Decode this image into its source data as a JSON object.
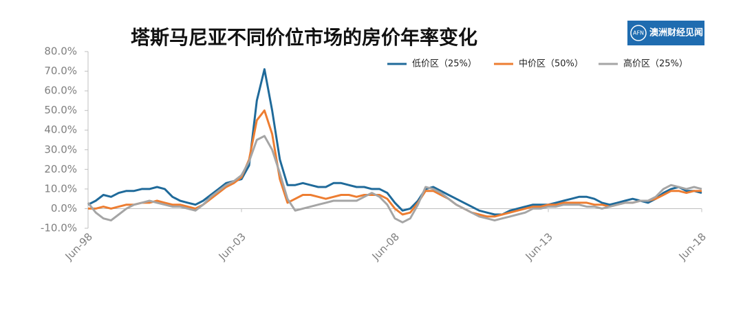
{
  "chart_data": {
    "type": "line",
    "title": "塔斯马尼亚不同价位市场的房价年率变化",
    "logo": {
      "mark": "AFN",
      "text": "澳洲财经见闻"
    },
    "categories": [
      "Jun-98",
      null,
      null,
      null,
      null,
      null,
      null,
      null,
      null,
      null,
      null,
      null,
      null,
      null,
      null,
      null,
      null,
      null,
      null,
      null,
      "Jun-03",
      null,
      null,
      null,
      null,
      null,
      null,
      null,
      null,
      null,
      null,
      null,
      null,
      null,
      null,
      null,
      null,
      null,
      null,
      null,
      "Jun-08",
      null,
      null,
      null,
      null,
      null,
      null,
      null,
      null,
      null,
      null,
      null,
      null,
      null,
      null,
      null,
      null,
      null,
      null,
      null,
      "Jun-13",
      null,
      null,
      null,
      null,
      null,
      null,
      null,
      null,
      null,
      null,
      null,
      null,
      null,
      null,
      null,
      null,
      null,
      null,
      null,
      "Jun-18"
    ],
    "series": [
      {
        "name": "低价区（25%）",
        "color": "#1f6a9a",
        "values": [
          2,
          4,
          7,
          6,
          8,
          9,
          9,
          10,
          10,
          11,
          10,
          6,
          4,
          3,
          2,
          4,
          7,
          10,
          13,
          14,
          15,
          22,
          55,
          71,
          50,
          25,
          12,
          12,
          13,
          12,
          11,
          11,
          13,
          13,
          12,
          11,
          11,
          10,
          10,
          8,
          3,
          -1,
          0,
          4,
          10,
          11,
          9,
          7,
          5,
          3,
          1,
          -1,
          -2,
          -3,
          -3,
          -1,
          0,
          1,
          2,
          2,
          2,
          3,
          4,
          5,
          6,
          6,
          5,
          3,
          2,
          3,
          4,
          5,
          4,
          3,
          5,
          8,
          10,
          11,
          9,
          9,
          8
        ]
      },
      {
        "name": "中价区（50%）",
        "color": "#ed7d31",
        "values": [
          0,
          0,
          1,
          0,
          1,
          2,
          2,
          3,
          3,
          4,
          3,
          2,
          2,
          1,
          0,
          2,
          5,
          8,
          11,
          13,
          16,
          25,
          45,
          50,
          38,
          15,
          3,
          5,
          7,
          7,
          6,
          5,
          6,
          7,
          7,
          6,
          7,
          7,
          7,
          5,
          0,
          -3,
          -2,
          3,
          9,
          9,
          7,
          5,
          2,
          0,
          -2,
          -3,
          -4,
          -4,
          -3,
          -2,
          -1,
          0,
          1,
          1,
          2,
          2,
          3,
          3,
          3,
          3,
          2,
          2,
          1,
          2,
          3,
          3,
          4,
          4,
          5,
          7,
          9,
          9,
          8,
          9,
          9
        ]
      },
      {
        "name": "高价区（25%）",
        "color": "#a5a5a5",
        "values": [
          3,
          -2,
          -5,
          -6,
          -3,
          0,
          2,
          3,
          4,
          3,
          2,
          1,
          1,
          0,
          -1,
          2,
          6,
          9,
          12,
          14,
          17,
          24,
          35,
          37,
          30,
          18,
          5,
          -1,
          0,
          1,
          2,
          3,
          4,
          4,
          4,
          4,
          6,
          8,
          6,
          2,
          -5,
          -7,
          -5,
          2,
          11,
          10,
          8,
          5,
          2,
          0,
          -2,
          -4,
          -5,
          -6,
          -5,
          -4,
          -3,
          -2,
          0,
          0,
          1,
          1,
          2,
          2,
          2,
          1,
          1,
          0,
          1,
          2,
          3,
          3,
          4,
          4,
          6,
          10,
          12,
          11,
          10,
          11,
          10
        ]
      }
    ],
    "ylim": [
      -10,
      80
    ],
    "yticks": [
      {
        "value": -10,
        "label": "-10.0%"
      },
      {
        "value": 0,
        "label": "0.0%"
      },
      {
        "value": 10,
        "label": "10.0%"
      },
      {
        "value": 20,
        "label": "20.0%"
      },
      {
        "value": 30,
        "label": "30.0%"
      },
      {
        "value": 40,
        "label": "40.0%"
      },
      {
        "value": 50,
        "label": "50.0%"
      },
      {
        "value": 60,
        "label": "60.0%"
      },
      {
        "value": 70,
        "label": "70.0%"
      },
      {
        "value": 80,
        "label": "80.0%"
      }
    ],
    "grid": false,
    "legend": "top-right"
  }
}
